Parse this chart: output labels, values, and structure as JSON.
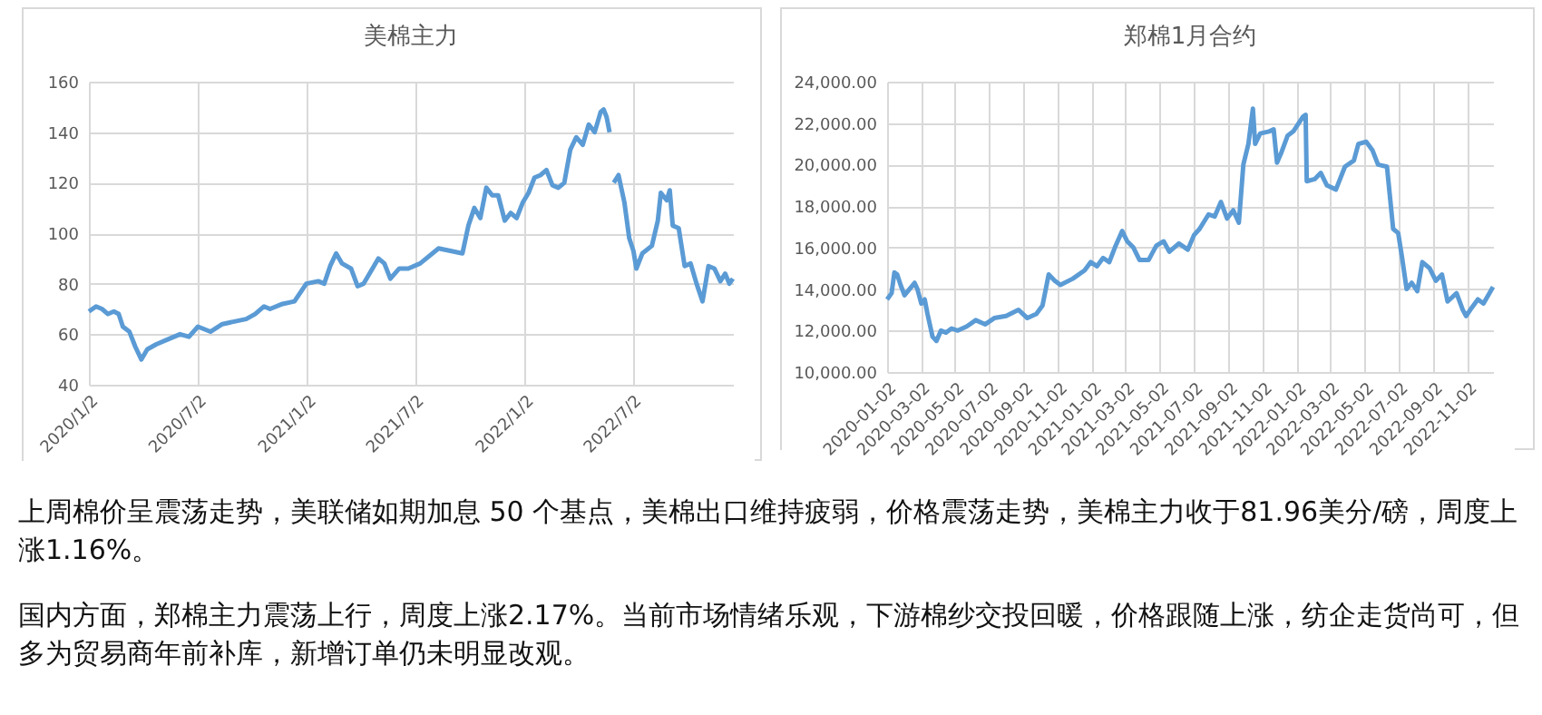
{
  "chart_data": [
    {
      "type": "line",
      "title": "美棉主力",
      "grid": true,
      "line_style": "solid",
      "x": [
        "2020-01-02",
        "2020-01-14",
        "2020-01-24",
        "2020-02-03",
        "2020-02-13",
        "2020-02-21",
        "2020-02-28",
        "2020-03-10",
        "2020-03-20",
        "2020-03-30",
        "2020-04-09",
        "2020-04-24",
        "2020-05-14",
        "2020-06-03",
        "2020-06-18",
        "2020-07-03",
        "2020-07-24",
        "2020-08-13",
        "2020-09-02",
        "2020-09-22",
        "2020-10-07",
        "2020-10-22",
        "2020-11-01",
        "2020-11-22",
        "2020-12-12",
        "2021-01-01",
        "2021-01-21",
        "2021-01-31",
        "2021-02-10",
        "2021-02-20",
        "2021-03-02",
        "2021-03-17",
        "2021-03-28",
        "2021-04-07",
        "2021-04-22",
        "2021-05-02",
        "2021-05-12",
        "2021-05-22",
        "2021-06-06",
        "2021-06-21",
        "2021-07-11",
        "2021-08-11",
        "2021-08-31",
        "2021-09-20",
        "2021-09-30",
        "2021-10-10",
        "2021-10-20",
        "2021-10-30",
        "2021-11-09",
        "2021-11-19",
        "2021-11-30",
        "2021-12-10",
        "2021-12-20",
        "2021-12-30",
        "2022-01-09",
        "2022-01-19",
        "2022-01-29",
        "2022-02-08",
        "2022-02-18",
        "2022-02-28",
        "2022-03-10",
        "2022-03-20",
        "2022-03-30",
        "2022-04-10",
        "2022-04-20",
        "2022-04-30",
        "2022-05-10",
        "2022-05-15",
        "2022-05-20",
        "2022-05-25",
        "2022-05-28",
        "2022-06-01",
        "2022-06-09",
        "2022-06-19",
        "2022-06-27",
        "2022-07-04",
        "2022-07-09",
        "2022-07-19",
        "2022-08-04",
        "2022-08-14",
        "2022-08-19",
        "2022-08-29",
        "2022-09-03",
        "2022-09-08",
        "2022-09-18",
        "2022-09-28",
        "2022-10-08",
        "2022-10-18",
        "2022-10-28",
        "2022-11-07",
        "2022-11-17",
        "2022-11-27",
        "2022-12-05",
        "2022-12-12",
        "2022-12-18"
      ],
      "series": [
        {
          "color": "#5b9bd5",
          "values": [
            69,
            71,
            70,
            68,
            69,
            68,
            63,
            61,
            55,
            50,
            54,
            56,
            58,
            60,
            59,
            63,
            61,
            64,
            65,
            66,
            68,
            71,
            70,
            72,
            73,
            80,
            81,
            80,
            87,
            92,
            88,
            86,
            79,
            80,
            86,
            90,
            88,
            82,
            86,
            86,
            88,
            94,
            93,
            92,
            103,
            110,
            106,
            118,
            115,
            115,
            105,
            108,
            106,
            112,
            116,
            122,
            123,
            125,
            119,
            118,
            120,
            133,
            138,
            135,
            143,
            140,
            148,
            149,
            146,
            140,
            null,
            120,
            123,
            112,
            98,
            93,
            86,
            92,
            95,
            105,
            116,
            113,
            117,
            103,
            102,
            87,
            88,
            80,
            73,
            87,
            86,
            81,
            84,
            80,
            82
          ]
        }
      ],
      "xlim": [
        "2020-01-02",
        "2022-12-18"
      ],
      "xticks": [
        {
          "value": "2020-01-02",
          "label": "2020/1/2"
        },
        {
          "value": "2020-07-02",
          "label": "2020/7/2"
        },
        {
          "value": "2021-01-02",
          "label": "2021/1/2"
        },
        {
          "value": "2021-07-02",
          "label": "2021/7/2"
        },
        {
          "value": "2022-01-02",
          "label": "2022/1/2"
        },
        {
          "value": "2022-07-02",
          "label": "2022/7/2"
        }
      ],
      "ylim": [
        40,
        160
      ],
      "yticks": [
        40,
        60,
        80,
        100,
        120,
        140,
        160
      ]
    },
    {
      "type": "line",
      "title": "郑棉1月合约",
      "grid": true,
      "line_style": "solid",
      "x": [
        "2020-01-02",
        "2020-01-10",
        "2020-01-15",
        "2020-01-20",
        "2020-01-26",
        "2020-02-02",
        "2020-02-11",
        "2020-02-20",
        "2020-02-25",
        "2020-03-03",
        "2020-03-09",
        "2020-03-14",
        "2020-03-23",
        "2020-03-30",
        "2020-04-07",
        "2020-04-16",
        "2020-04-26",
        "2020-05-07",
        "2020-05-23",
        "2020-06-08",
        "2020-06-25",
        "2020-07-11",
        "2020-08-01",
        "2020-08-23",
        "2020-09-08",
        "2020-09-24",
        "2020-10-05",
        "2020-10-16",
        "2020-10-27",
        "2020-11-06",
        "2020-11-28",
        "2020-12-19",
        "2020-12-30",
        "2021-01-10",
        "2021-01-21",
        "2021-02-01",
        "2021-02-11",
        "2021-02-24",
        "2021-03-05",
        "2021-03-16",
        "2021-03-27",
        "2021-04-12",
        "2021-04-26",
        "2021-05-09",
        "2021-05-19",
        "2021-06-05",
        "2021-06-21",
        "2021-07-02",
        "2021-07-12",
        "2021-07-28",
        "2021-08-08",
        "2021-08-19",
        "2021-08-30",
        "2021-09-10",
        "2021-09-20",
        "2021-09-28",
        "2021-10-07",
        "2021-10-15",
        "2021-10-19",
        "2021-10-28",
        "2021-11-13",
        "2021-11-21",
        "2021-11-27",
        "2021-12-05",
        "2021-12-16",
        "2021-12-26",
        "2022-01-12",
        "2022-01-17",
        "2022-01-19",
        "2022-02-02",
        "2022-02-13",
        "2022-02-24",
        "2022-03-12",
        "2022-03-28",
        "2022-04-13",
        "2022-04-21",
        "2022-05-05",
        "2022-05-16",
        "2022-05-26",
        "2022-06-11",
        "2022-06-22",
        "2022-07-01",
        "2022-07-08",
        "2022-07-16",
        "2022-07-25",
        "2022-08-04",
        "2022-08-13",
        "2022-08-26",
        "2022-09-06",
        "2022-09-17",
        "2022-09-27",
        "2022-10-13",
        "2022-10-24",
        "2022-10-30",
        "2022-11-09",
        "2022-11-20",
        "2022-11-30",
        "2022-12-17"
      ],
      "series": [
        {
          "color": "#5b9bd5",
          "values": [
            13500,
            13800,
            14800,
            14700,
            14200,
            13700,
            14000,
            14300,
            14000,
            13300,
            13500,
            12800,
            11700,
            11500,
            12000,
            11900,
            12100,
            12000,
            12200,
            12500,
            12300,
            12600,
            12700,
            13000,
            12600,
            12800,
            13200,
            14700,
            14400,
            14200,
            14500,
            14900,
            15300,
            15100,
            15500,
            15300,
            16000,
            16800,
            16300,
            16000,
            15400,
            15400,
            16100,
            16300,
            15800,
            16200,
            15900,
            16600,
            16900,
            17600,
            17500,
            18200,
            17400,
            17800,
            17200,
            20000,
            21000,
            22700,
            21000,
            21500,
            21600,
            21700,
            20100,
            20600,
            21400,
            21600,
            22300,
            22400,
            19200,
            19300,
            19600,
            19000,
            18800,
            19900,
            20200,
            21000,
            21100,
            20700,
            20000,
            19900,
            16900,
            16700,
            15500,
            14000,
            14300,
            13900,
            15300,
            15000,
            14400,
            14700,
            13400,
            13800,
            13000,
            12700,
            13100,
            13500,
            13300,
            14100
          ]
        }
      ],
      "xlim": [
        "2020-01-02",
        "2022-12-17"
      ],
      "xticks": [
        "2020-01-02",
        "2020-03-02",
        "2020-05-02",
        "2020-07-02",
        "2020-09-02",
        "2020-11-02",
        "2021-01-02",
        "2021-03-02",
        "2021-05-02",
        "2021-07-02",
        "2021-09-02",
        "2021-11-02",
        "2022-01-02",
        "2022-03-02",
        "2022-05-02",
        "2022-07-02",
        "2022-09-02",
        "2022-11-02"
      ],
      "ylim": [
        10000,
        24000
      ],
      "yticks": [
        {
          "value": 10000,
          "label": "10,000.00"
        },
        {
          "value": 12000,
          "label": "12,000.00"
        },
        {
          "value": 14000,
          "label": "14,000.00"
        },
        {
          "value": 16000,
          "label": "16,000.00"
        },
        {
          "value": 18000,
          "label": "18,000.00"
        },
        {
          "value": 20000,
          "label": "20,000.00"
        },
        {
          "value": 22000,
          "label": "22,000.00"
        },
        {
          "value": 24000,
          "label": "24,000.00"
        }
      ]
    },
    {
      "type": "other",
      "annotations": [
        "上周棉价呈震荡走势，美联储如期加息 50 个基点，美棉出口维持疲弱，价格震荡走势，美棉主力收于81.96美分/磅，周度上涨1.16%。",
        "国内方面，郑棉主力震荡上行，周度上涨2.17%。当前市场情绪乐观，下游棉纱交投回暖，价格跟随上涨，纺企走货尚可，但多为贸易商年前补库，新增订单仍未明显改观。"
      ]
    }
  ]
}
